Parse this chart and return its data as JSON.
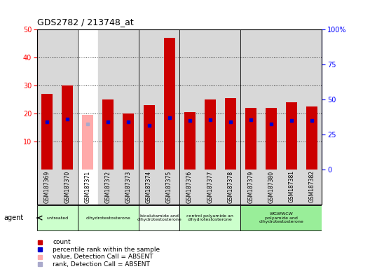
{
  "title": "GDS2782 / 213748_at",
  "samples": [
    "GSM187369",
    "GSM187370",
    "GSM187371",
    "GSM187372",
    "GSM187373",
    "GSM187374",
    "GSM187375",
    "GSM187376",
    "GSM187377",
    "GSM187378",
    "GSM187379",
    "GSM187380",
    "GSM187381",
    "GSM187382"
  ],
  "count_values": [
    27,
    30,
    19.5,
    25,
    20,
    23,
    47,
    20.5,
    25,
    25.5,
    22,
    22,
    24,
    22.5
  ],
  "rank_values": [
    34,
    36,
    32.5,
    34,
    34,
    31.5,
    37,
    35,
    35.5,
    34,
    35.5,
    32.5,
    35,
    35
  ],
  "absent_mask": [
    false,
    false,
    true,
    false,
    false,
    false,
    false,
    false,
    false,
    false,
    false,
    false,
    false,
    false
  ],
  "count_color_present": "#cc0000",
  "count_color_absent": "#ffaaaa",
  "rank_color_present": "#0000cc",
  "rank_color_absent": "#aaaacc",
  "ylim_left": [
    0,
    50
  ],
  "ylim_right": [
    0,
    100
  ],
  "yticks_left": [
    10,
    20,
    30,
    40,
    50
  ],
  "yticks_right": [
    0,
    25,
    50,
    75,
    100
  ],
  "ytick_labels_right": [
    "0",
    "25",
    "50",
    "75",
    "100%"
  ],
  "agent_groups": [
    {
      "label": "untreated",
      "cols": [
        0,
        1
      ],
      "color": "#ccffcc"
    },
    {
      "label": "dihydrotestosterone",
      "cols": [
        2,
        3,
        4
      ],
      "color": "#ccffcc"
    },
    {
      "label": "bicalutamide and\ndihydrotestosterone",
      "cols": [
        5,
        6
      ],
      "color": "#eeffee"
    },
    {
      "label": "control polyamide an\ndihydrotestosterone",
      "cols": [
        7,
        8,
        9
      ],
      "color": "#ccffcc"
    },
    {
      "label": "WGWWCW\npolyamide and\ndihydrotestosterone",
      "cols": [
        10,
        11,
        12,
        13
      ],
      "color": "#99ee99"
    }
  ],
  "bg_color": "#d8d8d8",
  "dotted_line_color": "#333333",
  "bar_width": 0.55,
  "col_bg_colors": [
    "#d8d8d8",
    "#d8d8d8",
    "#ffffff",
    "#d8d8d8",
    "#d8d8d8",
    "#d8d8d8",
    "#d8d8d8",
    "#d8d8d8",
    "#d8d8d8",
    "#d8d8d8",
    "#d8d8d8",
    "#d8d8d8",
    "#d8d8d8",
    "#d8d8d8"
  ]
}
